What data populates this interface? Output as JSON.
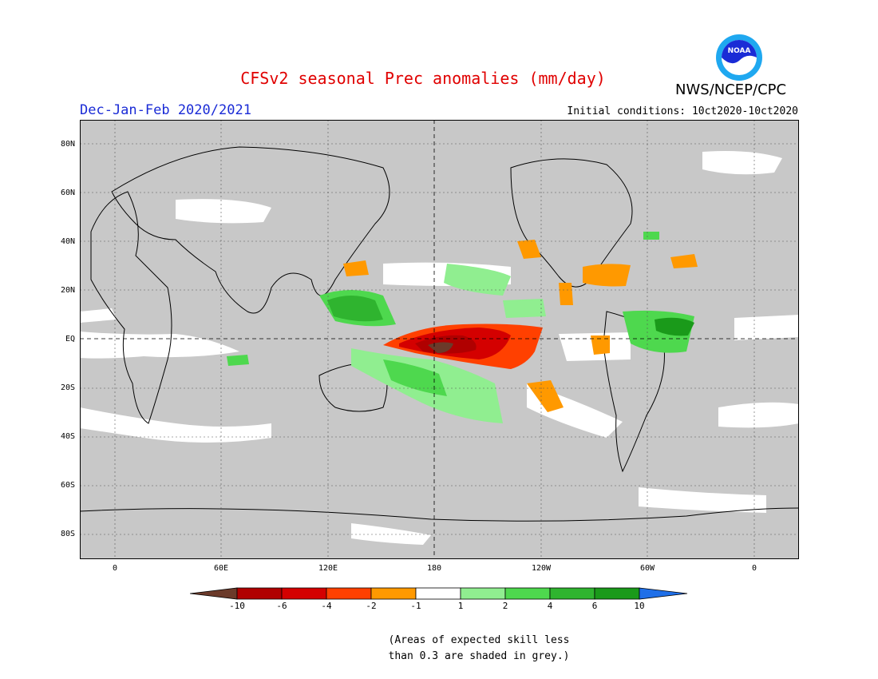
{
  "title": "CFSv2 seasonal Prec anomalies (mm/day)",
  "season": "Dec-Jan-Feb 2020/2021",
  "initial_conditions": "Initial conditions: 10ct2020-10ct2020",
  "agency": "NWS/NCEP/CPC",
  "logo": {
    "text": "NOAA",
    "icon": "noaa-logo"
  },
  "lat_labels": [
    "80N",
    "60N",
    "40N",
    "20N",
    "EQ",
    "20S",
    "40S",
    "60S",
    "80S"
  ],
  "lon_labels": [
    "0",
    "60E",
    "120E",
    "180",
    "120W",
    "60W",
    "0"
  ],
  "colorbar": {
    "labels": [
      "-10",
      "-6",
      "-4",
      "-2",
      "-1",
      "1",
      "2",
      "4",
      "6",
      "10"
    ],
    "colors": {
      "below_min": "#6b3a2a",
      "c1": "#b00000",
      "c2": "#d40000",
      "c3": "#ff4000",
      "c4": "#ff9900",
      "c5": "#ffffff",
      "c6": "#90ee90",
      "c7": "#4ed84e",
      "c8": "#2fb42f",
      "c9": "#1a9a1a",
      "above_max": "#1f6fe8"
    }
  },
  "colors": {
    "skill_mask": "#c8c8c8",
    "title": "#e00000",
    "season": "#1a2bd6"
  },
  "note": [
    "(Areas of expected skill less",
    "than 0.3 are shaded in grey.)"
  ]
}
